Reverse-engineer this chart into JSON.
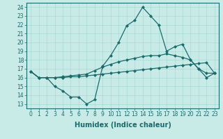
{
  "x": [
    0,
    1,
    2,
    3,
    4,
    5,
    6,
    7,
    8,
    9,
    10,
    11,
    12,
    13,
    14,
    15,
    16,
    17,
    18,
    19,
    20,
    21,
    22,
    23
  ],
  "line1": [
    16.7,
    16.0,
    16.0,
    15.0,
    14.5,
    13.8,
    13.8,
    13.0,
    13.5,
    17.3,
    18.5,
    20.0,
    21.9,
    22.5,
    24.0,
    23.0,
    22.0,
    19.0,
    19.5,
    19.8,
    18.0,
    17.0,
    16.0,
    16.5
  ],
  "line2": [
    16.7,
    16.0,
    16.0,
    16.0,
    16.1,
    16.2,
    16.3,
    16.4,
    16.8,
    17.2,
    17.5,
    17.8,
    18.0,
    18.2,
    18.4,
    18.5,
    18.5,
    18.7,
    18.5,
    18.3,
    18.0,
    17.0,
    16.5,
    16.5
  ],
  "line3": [
    16.7,
    16.0,
    16.0,
    16.0,
    16.0,
    16.1,
    16.1,
    16.2,
    16.3,
    16.4,
    16.5,
    16.6,
    16.7,
    16.8,
    16.9,
    17.0,
    17.1,
    17.2,
    17.3,
    17.4,
    17.5,
    17.6,
    17.7,
    16.5
  ],
  "bg_color": "#c8ebe8",
  "line_color": "#1a6b6b",
  "grid_color": "#a8d8d4",
  "xlabel": "Humidex (Indice chaleur)",
  "xlim": [
    -0.5,
    23.5
  ],
  "ylim": [
    12.5,
    24.5
  ],
  "yticks": [
    13,
    14,
    15,
    16,
    17,
    18,
    19,
    20,
    21,
    22,
    23,
    24
  ],
  "xticks": [
    0,
    1,
    2,
    3,
    4,
    5,
    6,
    7,
    8,
    9,
    10,
    11,
    12,
    13,
    14,
    15,
    16,
    17,
    18,
    19,
    20,
    21,
    22,
    23
  ],
  "marker": "D",
  "markersize": 2.0,
  "linewidth": 0.9,
  "xlabel_fontsize": 7,
  "tick_fontsize": 5.5
}
